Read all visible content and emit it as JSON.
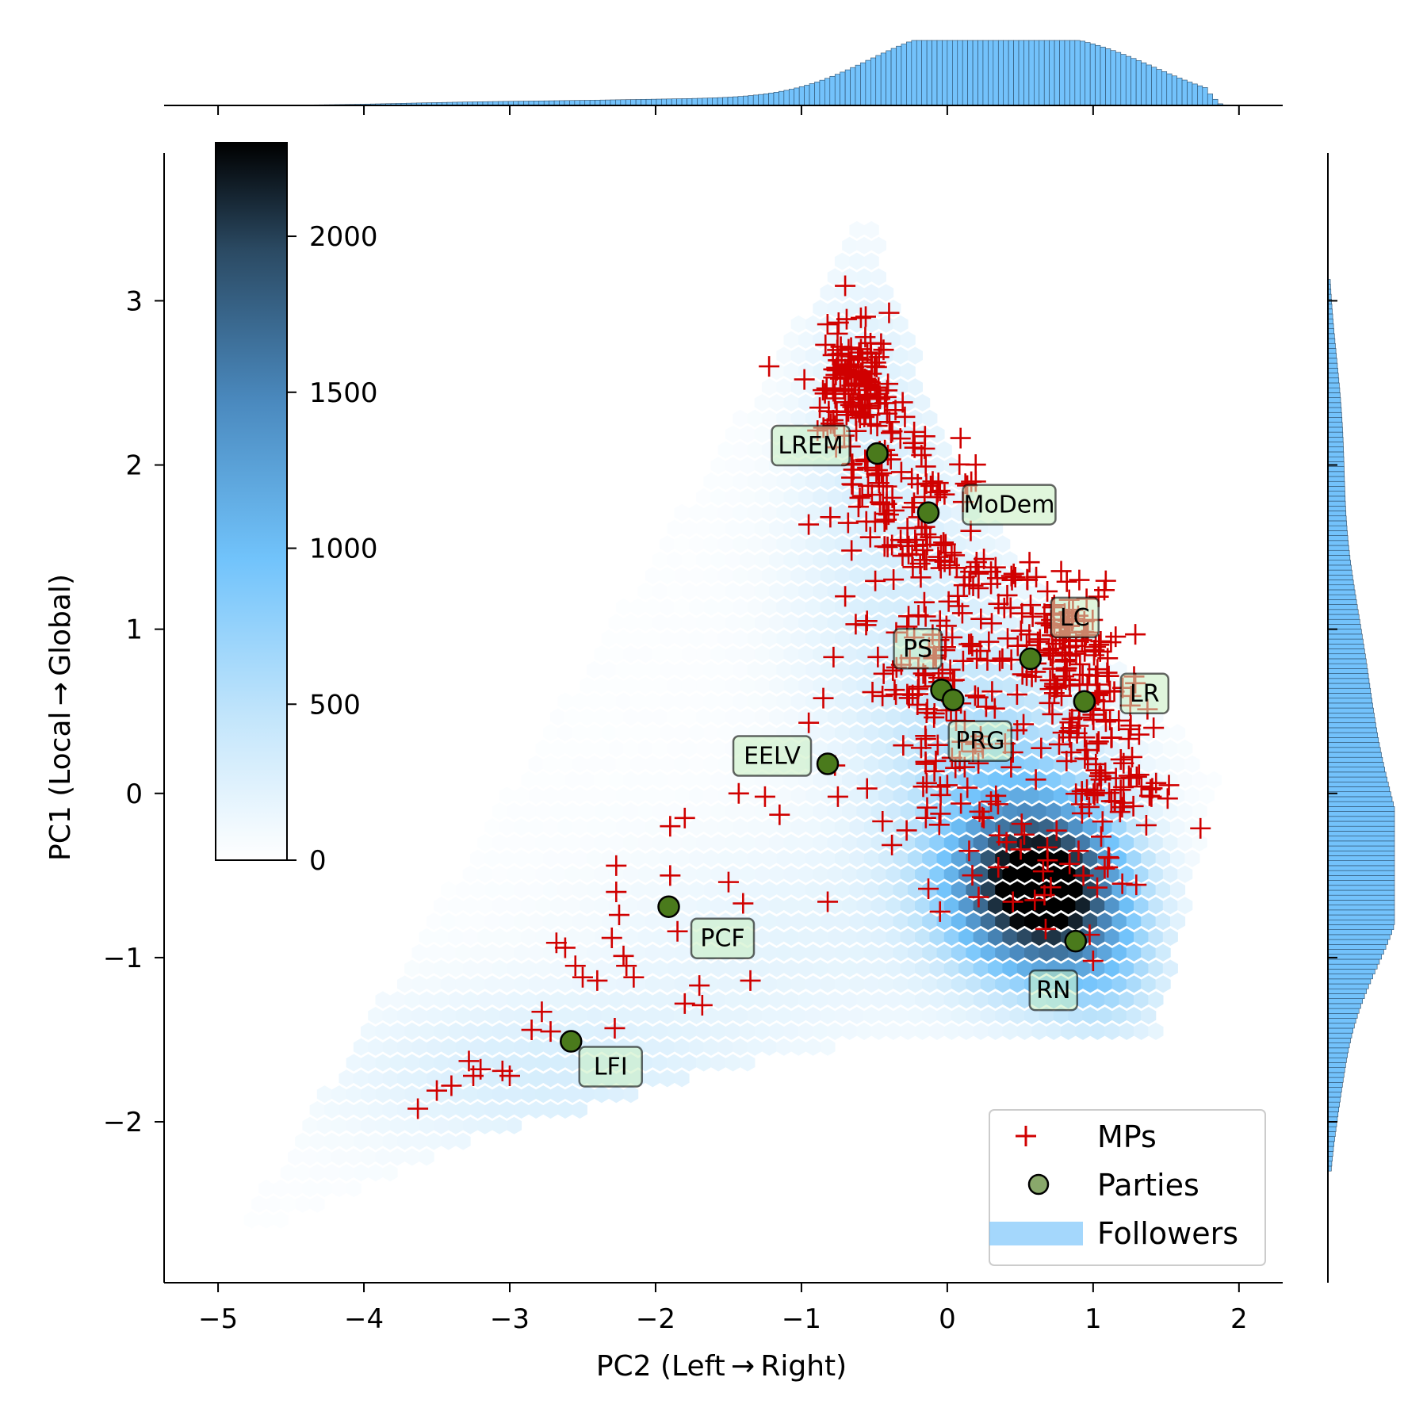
{
  "chart_data": {
    "type": "hexbin_joint_scatter",
    "xlabel": "PC2 (Left → Right)",
    "ylabel": "PC1 (Local → Global)",
    "xlim": [
      -5.37,
      2.3
    ],
    "ylim": [
      -2.98,
      3.9
    ],
    "x_ticks": [
      {
        "value": -5,
        "label": "−5"
      },
      {
        "value": -4,
        "label": "−4"
      },
      {
        "value": -3,
        "label": "−3"
      },
      {
        "value": -2,
        "label": "−2"
      },
      {
        "value": -1,
        "label": "−1"
      },
      {
        "value": 0,
        "label": "0"
      },
      {
        "value": 1,
        "label": "1"
      },
      {
        "value": 2,
        "label": "2"
      }
    ],
    "y_ticks": [
      {
        "value": -2,
        "label": "−2"
      },
      {
        "value": -1,
        "label": "−1"
      },
      {
        "value": 0,
        "label": "0"
      },
      {
        "value": 1,
        "label": "1"
      },
      {
        "value": 2,
        "label": "2"
      },
      {
        "value": 3,
        "label": "3"
      }
    ],
    "colorbar": {
      "range": [
        0,
        2300
      ],
      "ticks": [
        {
          "value": 0,
          "label": "0"
        },
        {
          "value": 500,
          "label": "500"
        },
        {
          "value": 1000,
          "label": "1000"
        },
        {
          "value": 1500,
          "label": "1500"
        },
        {
          "value": 2000,
          "label": "2000"
        }
      ],
      "colors": [
        "#ffffff",
        "#c2e5fb",
        "#71c3fb",
        "#4a89be",
        "#2b4a63",
        "#000000"
      ]
    },
    "colors": {
      "mps": "#d00000",
      "parties_fill": "#4a7a1c",
      "followers": "#73c2fb",
      "label_box": "#c6efc0"
    },
    "legend": {
      "placement": "lower right",
      "items": [
        {
          "label": "MPs",
          "marker": "plus"
        },
        {
          "label": "Parties",
          "marker": "circle"
        },
        {
          "label": "Followers",
          "marker": "patch"
        }
      ]
    },
    "parties": [
      {
        "name": "LREM",
        "x": -0.48,
        "y": 2.07
      },
      {
        "name": "MoDem",
        "x": -0.13,
        "y": 1.71
      },
      {
        "name": "LC",
        "x": 0.57,
        "y": 0.82
      },
      {
        "name": "PS",
        "x": -0.04,
        "y": 0.63
      },
      {
        "name": "LR",
        "x": 0.94,
        "y": 0.56
      },
      {
        "name": "PRG",
        "x": 0.04,
        "y": 0.57
      },
      {
        "name": "EELV",
        "x": -0.82,
        "y": 0.18
      },
      {
        "name": "PCF",
        "x": -1.91,
        "y": -0.69
      },
      {
        "name": "RN",
        "x": 0.88,
        "y": -0.9
      },
      {
        "name": "LFI",
        "x": -2.58,
        "y": -1.51
      }
    ],
    "follower_density": {
      "description": "hexbin counts of followers",
      "peak": {
        "x": 0.68,
        "y": -0.62,
        "count": 2300
      },
      "components": [
        {
          "cx": 0.65,
          "cy": -0.6,
          "sx": 0.38,
          "sy": 0.33,
          "amp": 2300
        },
        {
          "cx": 0.4,
          "cy": -0.1,
          "sx": 0.5,
          "sy": 0.6,
          "amp": 700
        },
        {
          "cx": -0.3,
          "cy": 1.2,
          "sx": 0.55,
          "sy": 0.9,
          "amp": 260
        },
        {
          "cx": -0.6,
          "cy": 2.5,
          "sx": 0.3,
          "sy": 0.6,
          "amp": 180
        },
        {
          "cx": -2.8,
          "cy": -1.7,
          "sx": 1.0,
          "sy": 0.35,
          "amp": 280
        },
        {
          "cx": -1.2,
          "cy": -0.9,
          "sx": 0.9,
          "sy": 0.45,
          "amp": 160
        },
        {
          "cx": 1.1,
          "cy": -1.1,
          "sx": 0.3,
          "sy": 0.3,
          "amp": 500
        }
      ]
    },
    "mp_clusters": [
      {
        "cx": -0.65,
        "cy": 2.55,
        "sx": 0.12,
        "sy": 0.18,
        "n": 110
      },
      {
        "cx": -0.45,
        "cy": 2.05,
        "sx": 0.2,
        "sy": 0.25,
        "n": 80
      },
      {
        "cx": -0.2,
        "cy": 1.55,
        "sx": 0.25,
        "sy": 0.25,
        "n": 60
      },
      {
        "cx": 0.3,
        "cy": 1.25,
        "sx": 0.3,
        "sy": 0.2,
        "n": 40
      },
      {
        "cx": 0.8,
        "cy": 0.85,
        "sx": 0.2,
        "sy": 0.2,
        "n": 110
      },
      {
        "cx": 1.05,
        "cy": 0.4,
        "sx": 0.2,
        "sy": 0.25,
        "n": 70
      },
      {
        "cx": -0.1,
        "cy": 0.65,
        "sx": 0.22,
        "sy": 0.28,
        "n": 70
      },
      {
        "cx": 0.1,
        "cy": 0.1,
        "sx": 0.3,
        "sy": 0.3,
        "n": 35
      },
      {
        "cx": 0.7,
        "cy": -0.5,
        "sx": 0.3,
        "sy": 0.25,
        "n": 20
      },
      {
        "cx": 1.2,
        "cy": 0.05,
        "sx": 0.15,
        "sy": 0.1,
        "n": 25
      }
    ],
    "mp_points": [
      [
        -3.63,
        -1.92
      ],
      [
        -3.5,
        -1.81
      ],
      [
        -3.4,
        -1.78
      ],
      [
        -3.28,
        -1.63
      ],
      [
        -3.25,
        -1.72
      ],
      [
        -3.2,
        -1.68
      ],
      [
        -3.05,
        -1.69
      ],
      [
        -3.0,
        -1.72
      ],
      [
        -2.85,
        -1.44
      ],
      [
        -2.78,
        -1.33
      ],
      [
        -2.72,
        -1.45
      ],
      [
        -2.68,
        -0.91
      ],
      [
        -2.62,
        -0.94
      ],
      [
        -2.55,
        -1.05
      ],
      [
        -2.5,
        -1.12
      ],
      [
        -2.4,
        -1.14
      ],
      [
        -2.27,
        -0.44
      ],
      [
        -2.22,
        -0.99
      ],
      [
        -2.2,
        -1.05
      ],
      [
        -2.15,
        -1.12
      ],
      [
        -2.28,
        -1.43
      ],
      [
        -2.25,
        -0.74
      ],
      [
        -2.3,
        -0.88
      ],
      [
        -2.27,
        -0.6
      ],
      [
        -1.9,
        -0.2
      ],
      [
        -1.8,
        -0.15
      ],
      [
        -1.9,
        -0.5
      ],
      [
        -1.85,
        -0.84
      ],
      [
        -1.8,
        -1.28
      ],
      [
        -1.7,
        -1.17
      ],
      [
        -1.68,
        -1.29
      ],
      [
        -1.5,
        -0.54
      ],
      [
        -1.4,
        -0.67
      ],
      [
        -1.35,
        -1.14
      ],
      [
        -1.43,
        0.0
      ],
      [
        -1.25,
        -0.02
      ],
      [
        -1.15,
        -0.13
      ],
      [
        -0.95,
        0.43
      ],
      [
        -0.85,
        0.58
      ],
      [
        -0.82,
        -0.66
      ],
      [
        -0.78,
        0.83
      ],
      [
        -0.77,
        0.17
      ],
      [
        -0.75,
        -0.02
      ],
      [
        -0.55,
        0.03
      ],
      [
        -0.05,
        -0.72
      ],
      [
        0.3,
        -0.05
      ],
      [
        0.45,
        -0.66
      ],
      [
        0.6,
        -0.65
      ],
      [
        1.0,
        -1.02
      ],
      [
        1.52,
        0.05
      ],
      [
        1.4,
        -0.02
      ],
      [
        0.9,
        -0.35
      ],
      [
        1.1,
        -0.45
      ],
      [
        1.2,
        -0.55
      ],
      [
        1.15,
        -0.05
      ],
      [
        0.35,
        -0.45
      ],
      [
        0.15,
        -0.35
      ],
      [
        -0.6,
        1.8
      ],
      [
        -0.45,
        1.95
      ],
      [
        -0.1,
        1.9
      ],
      [
        0.05,
        1.45
      ],
      [
        0.3,
        1.35
      ],
      [
        0.55,
        1.3
      ],
      [
        -0.7,
        1.2
      ],
      [
        -0.55,
        1.05
      ],
      [
        -0.35,
        0.98
      ],
      [
        -0.15,
        0.35
      ],
      [
        0.0,
        0.05
      ],
      [
        0.25,
        -0.15
      ],
      [
        0.45,
        0.25
      ],
      [
        0.7,
        0.55
      ],
      [
        0.85,
        0.25
      ]
    ]
  }
}
